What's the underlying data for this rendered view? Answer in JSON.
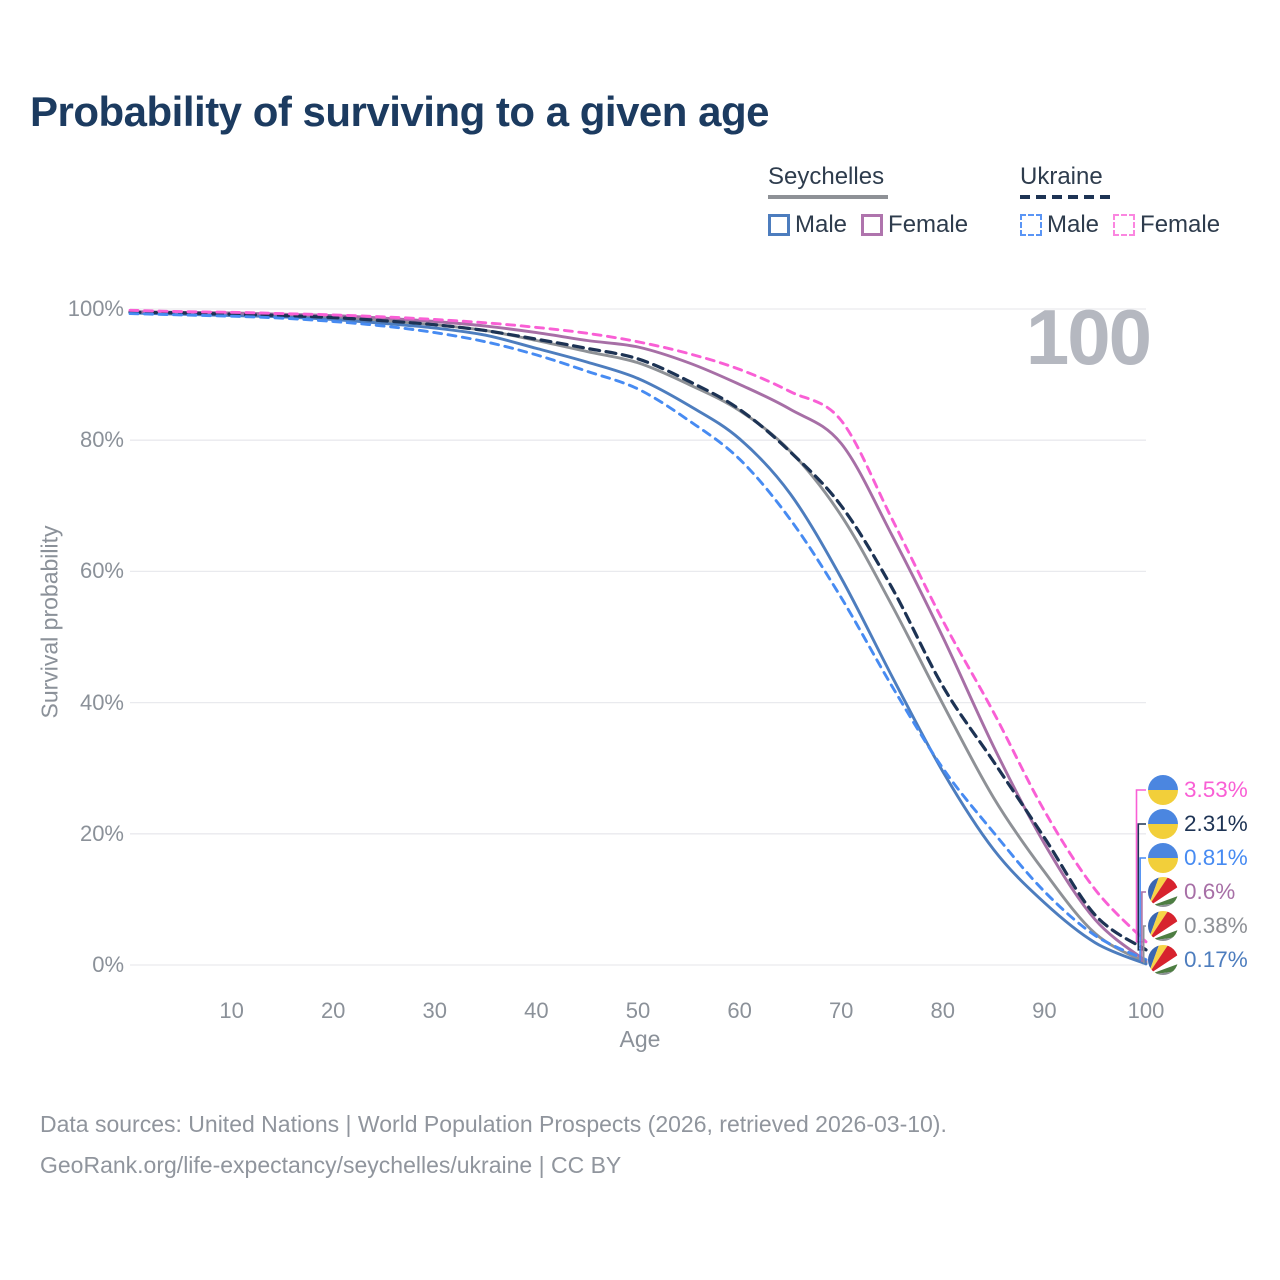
{
  "title": "Probability of surviving to a given age",
  "watermark": "100",
  "legend": {
    "groups": [
      {
        "label": "Seychelles",
        "line_style": "solid",
        "rule_color": "#8e9196",
        "items": [
          {
            "label": "Male",
            "color": "#4d7dbe",
            "dashed": false
          },
          {
            "label": "Female",
            "color": "#af74ad",
            "dashed": false
          }
        ]
      },
      {
        "label": "Ukraine",
        "line_style": "dashed",
        "rule_color": "#1d3354",
        "items": [
          {
            "label": "Male",
            "color": "#5a95f5",
            "dashed": true
          },
          {
            "label": "Female",
            "color": "#fb86e0",
            "dashed": true
          }
        ]
      }
    ]
  },
  "chart_data": {
    "type": "line",
    "title": "Probability of surviving to a given age",
    "xlabel": "Age",
    "ylabel": "Survival probability",
    "xlim": [
      0,
      100
    ],
    "ylim": [
      0,
      100
    ],
    "grid": "horizontal",
    "legend_position": "top-right",
    "x": [
      0,
      5,
      10,
      15,
      20,
      25,
      30,
      35,
      40,
      45,
      50,
      55,
      60,
      65,
      70,
      75,
      80,
      85,
      90,
      95,
      100
    ],
    "xticks": [
      {
        "label": "10",
        "value": 10
      },
      {
        "label": "20",
        "value": 20
      },
      {
        "label": "30",
        "value": 30
      },
      {
        "label": "40",
        "value": 40
      },
      {
        "label": "50",
        "value": 50
      },
      {
        "label": "60",
        "value": 60
      },
      {
        "label": "70",
        "value": 70
      },
      {
        "label": "80",
        "value": 80
      },
      {
        "label": "90",
        "value": 90
      },
      {
        "label": "100",
        "value": 100
      }
    ],
    "yticks": [
      {
        "label": "0%",
        "value": 0
      },
      {
        "label": "20%",
        "value": 20
      },
      {
        "label": "40%",
        "value": 40
      },
      {
        "label": "60%",
        "value": 60
      },
      {
        "label": "80%",
        "value": 80
      },
      {
        "label": "100%",
        "value": 100
      }
    ],
    "series": [
      {
        "name": "Seychelles (both sexes)",
        "country": "Seychelles",
        "sex": "Both",
        "color": "#8e9196",
        "dashed": false,
        "end_value_pct": 0.38,
        "values": [
          99.5,
          99.3,
          99.2,
          99.0,
          98.7,
          98.2,
          97.6,
          96.7,
          95.2,
          93.5,
          91.8,
          88.5,
          84.5,
          78.3,
          68.5,
          54.8,
          39.8,
          25.5,
          14.2,
          4.8,
          0.38
        ]
      },
      {
        "name": "Seychelles Male",
        "country": "Seychelles",
        "sex": "Male",
        "color": "#4d7dbe",
        "dashed": false,
        "end_value_pct": 0.17,
        "values": [
          99.4,
          99.2,
          99.0,
          98.8,
          98.4,
          97.8,
          97.1,
          96.0,
          94.0,
          91.9,
          89.4,
          85.3,
          80.2,
          71.8,
          59.0,
          44.0,
          29.5,
          17.6,
          9.5,
          3.4,
          0.17
        ]
      },
      {
        "name": "Seychelles Female",
        "country": "Seychelles",
        "sex": "Female",
        "color": "#a76fa6",
        "dashed": false,
        "end_value_pct": 0.6,
        "values": [
          99.6,
          99.5,
          99.4,
          99.2,
          99.0,
          98.6,
          98.1,
          97.4,
          96.4,
          95.2,
          94.2,
          91.8,
          88.5,
          84.7,
          79.5,
          65.5,
          50.0,
          33.3,
          18.5,
          6.9,
          0.6
        ]
      },
      {
        "name": "Ukraine (both sexes)",
        "country": "Ukraine",
        "sex": "Both",
        "color": "#1d3354",
        "dashed": true,
        "end_value_pct": 2.31,
        "values": [
          99.5,
          99.4,
          99.2,
          99.0,
          98.7,
          98.2,
          97.6,
          96.7,
          95.4,
          94.0,
          92.4,
          89.0,
          84.7,
          78.2,
          70.0,
          57.5,
          42.5,
          31.0,
          19.4,
          7.6,
          2.31
        ]
      },
      {
        "name": "Ukraine Male",
        "country": "Ukraine",
        "sex": "Male",
        "color": "#478bf2",
        "dashed": true,
        "end_value_pct": 0.81,
        "values": [
          99.3,
          99.1,
          98.9,
          98.6,
          98.1,
          97.4,
          96.4,
          95.0,
          93.0,
          90.5,
          87.8,
          83.0,
          77.1,
          67.9,
          56.0,
          42.5,
          30.0,
          20.2,
          11.2,
          4.5,
          0.81
        ]
      },
      {
        "name": "Ukraine Female",
        "country": "Ukraine",
        "sex": "Female",
        "color": "#f95fd5",
        "dashed": true,
        "end_value_pct": 3.53,
        "values": [
          99.8,
          99.6,
          99.5,
          99.3,
          99.1,
          98.8,
          98.4,
          97.9,
          97.2,
          96.3,
          95.0,
          93.2,
          90.8,
          87.4,
          83.0,
          68.0,
          52.5,
          38.5,
          23.5,
          11.5,
          3.53
        ]
      }
    ]
  },
  "end_labels": [
    {
      "value": "3.53%",
      "series": "Ukraine Female",
      "flag": "ukraine",
      "color": "#f95fd5"
    },
    {
      "value": "2.31%",
      "series": "Ukraine (both sexes)",
      "flag": "ukraine",
      "color": "#1d3354"
    },
    {
      "value": "0.81%",
      "series": "Ukraine Male",
      "flag": "ukraine",
      "color": "#478bf2"
    },
    {
      "value": "0.6%",
      "series": "Seychelles Female",
      "flag": "seychelles",
      "color": "#a76fa6"
    },
    {
      "value": "0.38%",
      "series": "Seychelles (both sexes)",
      "flag": "seychelles",
      "color": "#8e9196"
    },
    {
      "value": "0.17%",
      "series": "Seychelles Male",
      "flag": "seychelles",
      "color": "#4d7dbe"
    }
  ],
  "footer": {
    "line1": "Data sources: United Nations | World Population Prospects (2026, retrieved 2026-03-10).",
    "line2": "GeoRank.org/life-expectancy/seychelles/ukraine | CC BY"
  }
}
